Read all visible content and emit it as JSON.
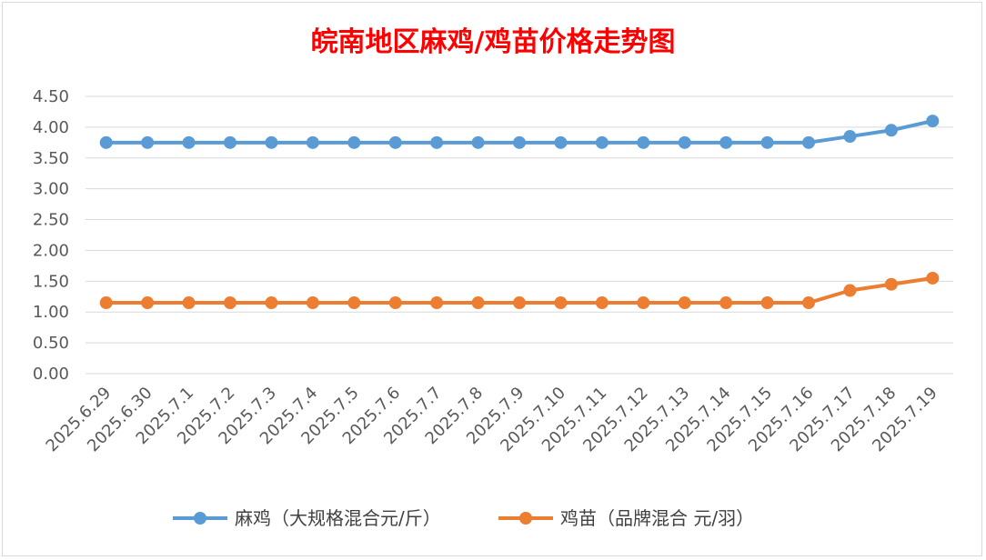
{
  "chart_data": {
    "type": "line",
    "title": "皖南地区麻鸡/鸡苗价格走势图",
    "categories": [
      "2025.6.29",
      "2025.6.30",
      "2025.7.1",
      "2025.7.2",
      "2025.7.3",
      "2025.7.4",
      "2025.7.5",
      "2025.7.6",
      "2025.7.7",
      "2025.7.8",
      "2025.7.9",
      "2025.7.10",
      "2025.7.11",
      "2025.7.12",
      "2025.7.13",
      "2025.7.14",
      "2025.7.15",
      "2025.7.16",
      "2025.7.17",
      "2025.7.18",
      "2025.7.19"
    ],
    "yticks": [
      "0.00",
      "0.50",
      "1.00",
      "1.50",
      "2.00",
      "2.50",
      "3.00",
      "3.50",
      "4.00",
      "4.50"
    ],
    "ylim": [
      0,
      4.5
    ],
    "grid": true,
    "legend_position": "bottom",
    "series": [
      {
        "name": "麻鸡（大规格混合元/斤）",
        "color": "#5b9bd5",
        "values": [
          3.75,
          3.75,
          3.75,
          3.75,
          3.75,
          3.75,
          3.75,
          3.75,
          3.75,
          3.75,
          3.75,
          3.75,
          3.75,
          3.75,
          3.75,
          3.75,
          3.75,
          3.75,
          3.85,
          3.95,
          4.1
        ]
      },
      {
        "name": "鸡苗（品牌混合 元/羽）",
        "color": "#ed7d31",
        "values": [
          1.15,
          1.15,
          1.15,
          1.15,
          1.15,
          1.15,
          1.15,
          1.15,
          1.15,
          1.15,
          1.15,
          1.15,
          1.15,
          1.15,
          1.15,
          1.15,
          1.15,
          1.15,
          1.35,
          1.45,
          1.55
        ]
      }
    ]
  }
}
